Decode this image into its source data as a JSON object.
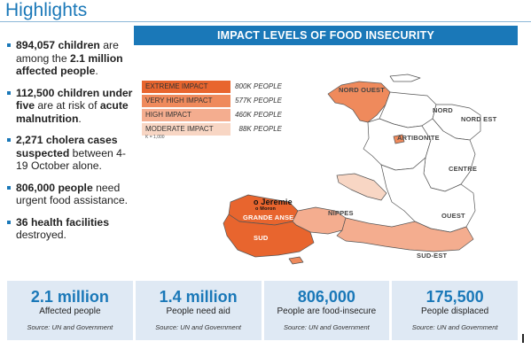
{
  "header": {
    "title": "Highlights"
  },
  "highlights": [
    {
      "b1": "894,057 children",
      "t1": " are among the ",
      "b2": "2.1 million affected people",
      "t2": "."
    },
    {
      "b1": "112,500 children under five",
      "t1": " are at risk of ",
      "b2": "acute malnutrition",
      "t2": "."
    },
    {
      "b1": "2,271 cholera cases suspected",
      "t1": " between 4-19 October alone.",
      "b2": "",
      "t2": ""
    },
    {
      "b1": "806,000 people",
      "t1": " need urgent food assistance.",
      "b2": "",
      "t2": ""
    },
    {
      "b1": "36 health facilities",
      "t1": " destroyed.",
      "b2": "",
      "t2": ""
    }
  ],
  "map": {
    "title": "IMPACT LEVELS OF FOOD INSECURITY",
    "legend": [
      {
        "label": "EXTREME IMPACT",
        "value": "800K PEOPLE",
        "color": "#e8652e"
      },
      {
        "label": "VERY HIGH IMPACT",
        "value": "577K PEOPLE",
        "color": "#ef8a5c"
      },
      {
        "label": "HIGH IMPACT",
        "value": "460K PEOPLE",
        "color": "#f4ad8f"
      },
      {
        "label": "MODERATE IMPACT",
        "value": "88K PEOPLE",
        "color": "#f8d6c4"
      }
    ],
    "legend_note": "K = 1,000",
    "regions": {
      "nord_ouest": "NORD OUEST",
      "nord": "NORD",
      "nord_est": "NORD EST",
      "artibonite": "ARTIBONITE",
      "centre": "CENTRE",
      "ouest": "OUEST",
      "nippes": "NIPPES",
      "grande_anse": "GRANDE ANSE",
      "sud": "SUD",
      "sud_est": "SUD-EST",
      "jeremie": "o Jeremie",
      "moron": "o Moron"
    }
  },
  "stats": [
    {
      "num": "2.1 million",
      "label": "Affected people",
      "source": "Source: UN and Government"
    },
    {
      "num": "1.4 million",
      "label": "People need aid",
      "source": "Source: UN and Government"
    },
    {
      "num": "806,000",
      "label": "People are food-insecure",
      "source": "Source: UN and Government"
    },
    {
      "num": "175,500",
      "label": "People displaced",
      "source": "Source: UN and Government"
    }
  ]
}
